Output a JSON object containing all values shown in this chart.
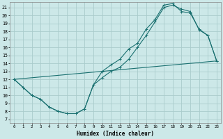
{
  "xlabel": "Humidex (Indice chaleur)",
  "bg_color": "#cce8e8",
  "grid_color": "#aacccc",
  "line_color": "#1a7070",
  "xlim": [
    -0.5,
    23.5
  ],
  "ylim": [
    6.5,
    21.7
  ],
  "xticks": [
    0,
    1,
    2,
    3,
    4,
    5,
    6,
    7,
    8,
    9,
    10,
    11,
    12,
    13,
    14,
    15,
    16,
    17,
    18,
    19,
    20,
    21,
    22,
    23
  ],
  "yticks": [
    7,
    8,
    9,
    10,
    11,
    12,
    13,
    14,
    15,
    16,
    17,
    18,
    19,
    20,
    21
  ],
  "curve1_x": [
    0,
    1,
    2,
    3,
    4,
    5,
    6,
    7,
    8,
    9,
    10,
    11,
    12,
    13,
    14,
    15,
    16,
    17,
    18,
    19,
    20,
    21,
    22,
    23
  ],
  "curve1_y": [
    12,
    11,
    10,
    9.5,
    8.5,
    8.0,
    7.7,
    7.7,
    8.3,
    11.3,
    13.0,
    13.8,
    14.5,
    15.8,
    16.5,
    18.3,
    19.5,
    21.3,
    21.5,
    20.5,
    20.3,
    18.3,
    17.5,
    14.3
  ],
  "curve2_x": [
    0,
    1,
    2,
    3,
    4,
    5,
    6,
    7,
    8,
    9,
    10,
    11,
    12,
    13,
    14,
    15,
    16,
    17,
    18,
    19,
    20,
    21,
    22,
    23
  ],
  "curve2_y": [
    12,
    11,
    10,
    9.5,
    8.5,
    8.0,
    7.7,
    7.7,
    8.3,
    11.3,
    12.2,
    13.0,
    13.5,
    14.5,
    16.0,
    17.5,
    19.2,
    21.0,
    21.3,
    20.8,
    20.5,
    18.2,
    17.5,
    14.3
  ],
  "curve3_x": [
    0,
    23
  ],
  "curve3_y": [
    12,
    14.3
  ],
  "marker_size": 2.5
}
